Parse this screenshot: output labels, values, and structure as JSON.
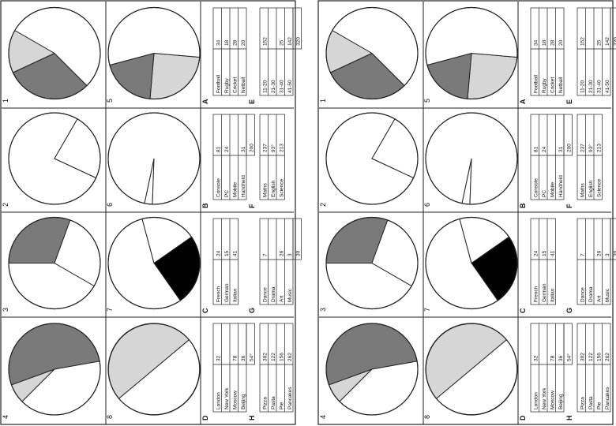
{
  "colors": {
    "dark": "#7a7a7a",
    "light": "#d6d6d6",
    "black": "#000000",
    "white": "#ffffff",
    "line": "#222222"
  },
  "pie_numbers": [
    "1",
    "2",
    "3",
    "4",
    "5",
    "6",
    "7",
    "8"
  ],
  "table_letters": [
    "A",
    "B",
    "C",
    "D",
    "E",
    "F",
    "G",
    "H"
  ],
  "chart_data": [
    {
      "type": "pie",
      "label": "1",
      "slices": [
        {
          "start": 45,
          "end": 155,
          "fill": "dark"
        },
        {
          "start": 155,
          "end": 210,
          "fill": "light"
        },
        {
          "start": 210,
          "end": 405,
          "fill": "white"
        }
      ]
    },
    {
      "type": "pie",
      "label": "2",
      "slices": [
        {
          "start": 25,
          "end": 300,
          "fill": "white"
        },
        {
          "start": 300,
          "end": 385,
          "fill": "white"
        }
      ]
    },
    {
      "type": "pie",
      "label": "3",
      "slices": [
        {
          "start": 30,
          "end": 180,
          "fill": "white"
        },
        {
          "start": 180,
          "end": 290,
          "fill": "dark"
        },
        {
          "start": 290,
          "end": 390,
          "fill": "white"
        }
      ]
    },
    {
      "type": "pie",
      "label": "4",
      "slices": [
        {
          "start": 135,
          "end": 160,
          "fill": "light"
        },
        {
          "start": 160,
          "end": 350,
          "fill": "dark"
        },
        {
          "start": 350,
          "end": 495,
          "fill": "white"
        }
      ]
    },
    {
      "type": "pie",
      "label": "5",
      "slices": [
        {
          "start": 5,
          "end": 95,
          "fill": "light"
        },
        {
          "start": 95,
          "end": 165,
          "fill": "dark"
        },
        {
          "start": 165,
          "end": 365,
          "fill": "white"
        }
      ]
    },
    {
      "type": "pie",
      "label": "6",
      "slices": [
        {
          "start": 92,
          "end": 102,
          "fill": "white"
        },
        {
          "start": 102,
          "end": 452,
          "fill": "white"
        }
      ]
    },
    {
      "type": "pie",
      "label": "7",
      "slices": [
        {
          "start": 325,
          "end": 55,
          "fill": "black"
        },
        {
          "start": 55,
          "end": 255,
          "fill": "white"
        },
        {
          "start": 255,
          "end": 325,
          "fill": "white"
        }
      ]
    },
    {
      "type": "pie",
      "label": "8",
      "slices": [
        {
          "start": 140,
          "end": 320,
          "fill": "light"
        },
        {
          "start": 320,
          "end": 500,
          "fill": "white"
        }
      ]
    }
  ],
  "tables": [
    {
      "letter": "A",
      "rows": [
        [
          "Football",
          "34"
        ],
        [
          "Rugby",
          "18"
        ],
        [
          "Cricket",
          "28"
        ],
        [
          "Netball",
          "20"
        ]
      ],
      "total": ""
    },
    {
      "letter": "B",
      "rows": [
        [
          "Console",
          "81"
        ],
        [
          "PC",
          "24"
        ],
        [
          "Mobile",
          ""
        ],
        [
          "Handheld",
          "31"
        ]
      ],
      "total": "200"
    },
    {
      "letter": "C",
      "rows": [
        [
          "French",
          "24"
        ],
        [
          "German",
          "15"
        ],
        [
          "Italian",
          "41"
        ]
      ],
      "total": ""
    },
    {
      "letter": "D",
      "rows": [
        [
          "London",
          "32"
        ],
        [
          "New York",
          ""
        ],
        [
          "Moscow",
          "78"
        ],
        [
          "Beijing",
          "36"
        ]
      ],
      "total": "54°"
    },
    {
      "letter": "E",
      "rows": [
        [
          "11-20",
          "152"
        ],
        [
          "21-30",
          ""
        ],
        [
          "31-40",
          "25"
        ],
        [
          "41-50",
          "142"
        ]
      ],
      "total": "320"
    },
    {
      "letter": "F",
      "rows": [
        [
          "Maths",
          "237"
        ],
        [
          "English",
          "93°"
        ],
        [
          "Science",
          "213"
        ]
      ],
      "total": ""
    },
    {
      "letter": "G",
      "rows": [
        [
          "Dance",
          "7"
        ],
        [
          "Drama",
          ""
        ],
        [
          "Art",
          "26"
        ],
        [
          "Music",
          "3"
        ]
      ],
      "total": "30"
    },
    {
      "letter": "H",
      "rows": [
        [
          "Pizza",
          "302"
        ],
        [
          "Pasta",
          "122"
        ],
        [
          "Pie",
          "156"
        ],
        [
          "Pancakes",
          "262"
        ]
      ],
      "total": ""
    }
  ]
}
